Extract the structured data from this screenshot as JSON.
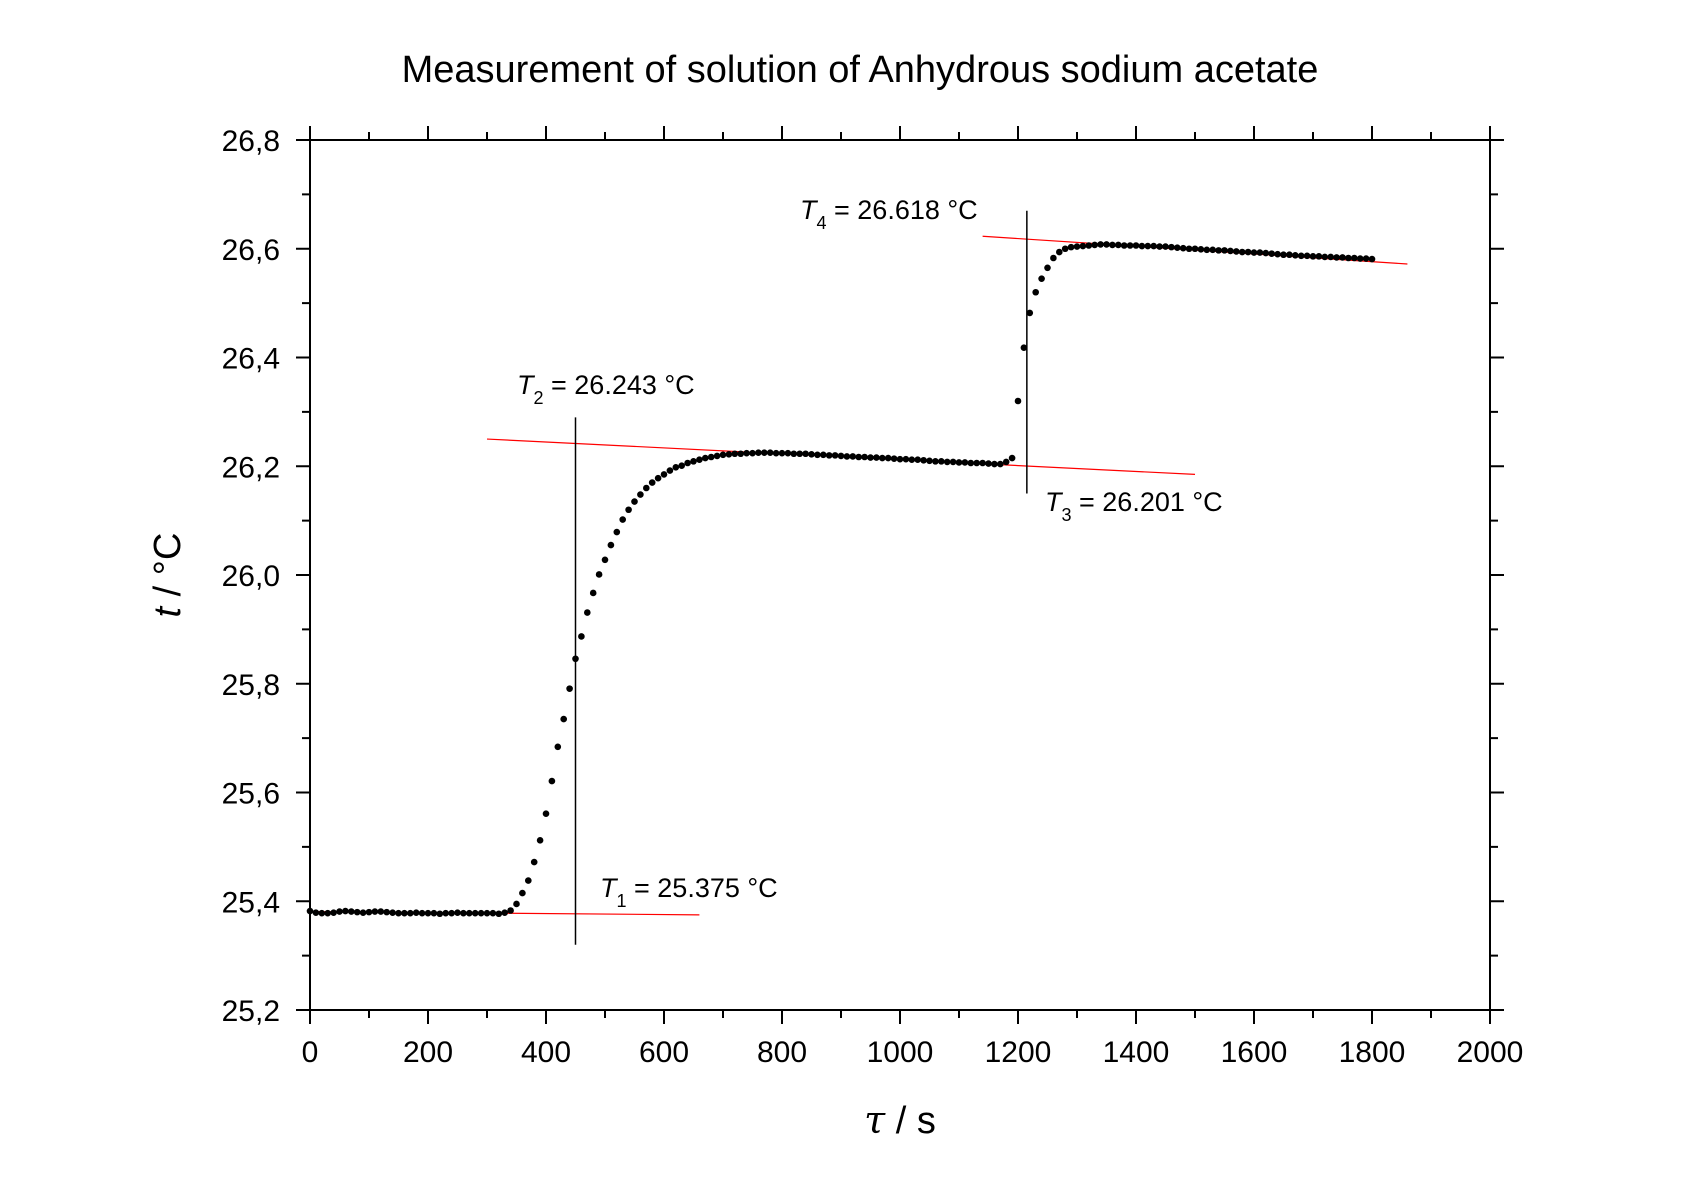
{
  "chart_data": {
    "type": "scatter",
    "title": "Measurement of solution of Anhydrous sodium acetate",
    "xlabel_symbol": "τ",
    "xlabel_unit": " / s",
    "ylabel_symbol": "t",
    "ylabel_unit": " / °C",
    "xlim": [
      0,
      2000
    ],
    "ylim": [
      25.2,
      26.8
    ],
    "x_ticks": [
      0,
      200,
      400,
      600,
      800,
      1000,
      1200,
      1400,
      1600,
      1800,
      2000
    ],
    "x_tick_labels": [
      "0",
      "200",
      "400",
      "600",
      "800",
      "1000",
      "1200",
      "1400",
      "1600",
      "1800",
      "2000"
    ],
    "y_ticks": [
      25.2,
      25.4,
      25.6,
      25.8,
      26.0,
      26.2,
      26.4,
      26.6,
      26.8
    ],
    "y_tick_labels": [
      "25,2",
      "25,4",
      "25,6",
      "25,8",
      "26,0",
      "26,2",
      "26,4",
      "26,6",
      "26,8"
    ],
    "grid": false,
    "marker_color": "#000000",
    "fit_line_color": "#ff0000",
    "series": [
      {
        "x": [
          0,
          10,
          20,
          30,
          40,
          50,
          60,
          70,
          80,
          90,
          100,
          110,
          120,
          130,
          140,
          150,
          160,
          170,
          180,
          190,
          200,
          210,
          220,
          230,
          240,
          250,
          260,
          270,
          280,
          290,
          300,
          310,
          320,
          330,
          340,
          350,
          360,
          370,
          380,
          390,
          400,
          410,
          420,
          430,
          440,
          450,
          460,
          470,
          480,
          490,
          500,
          510,
          520,
          530,
          540,
          550,
          560,
          570,
          580,
          590,
          600,
          610,
          620,
          630,
          640,
          650,
          660,
          670,
          680,
          690,
          700,
          710,
          720,
          730,
          740,
          750,
          760,
          770,
          780,
          790,
          800,
          810,
          820,
          830,
          840,
          850,
          860,
          870,
          880,
          890,
          900,
          910,
          920,
          930,
          940,
          950,
          960,
          970,
          980,
          990,
          1000,
          1010,
          1020,
          1030,
          1040,
          1050,
          1060,
          1070,
          1080,
          1090,
          1100,
          1110,
          1120,
          1130,
          1140,
          1150,
          1160,
          1170,
          1180,
          1190,
          1200,
          1210,
          1220,
          1230,
          1240,
          1250,
          1260,
          1270,
          1280,
          1290,
          1300,
          1310,
          1320,
          1330,
          1340,
          1350,
          1360,
          1370,
          1380,
          1390,
          1400,
          1410,
          1420,
          1430,
          1440,
          1450,
          1460,
          1470,
          1480,
          1490,
          1500,
          1510,
          1520,
          1530,
          1540,
          1550,
          1560,
          1570,
          1580,
          1590,
          1600,
          1610,
          1620,
          1630,
          1640,
          1650,
          1660,
          1670,
          1680,
          1690,
          1700,
          1710,
          1720,
          1730,
          1740,
          1750,
          1760,
          1770,
          1780,
          1790,
          1800
        ],
        "y": [
          25.382,
          25.379,
          25.378,
          25.378,
          25.379,
          25.381,
          25.382,
          25.381,
          25.38,
          25.379,
          25.38,
          25.381,
          25.381,
          25.38,
          25.379,
          25.378,
          25.378,
          25.378,
          25.379,
          25.378,
          25.378,
          25.378,
          25.377,
          25.378,
          25.378,
          25.379,
          25.378,
          25.378,
          25.378,
          25.378,
          25.378,
          25.378,
          25.377,
          25.379,
          25.383,
          25.395,
          25.415,
          25.438,
          25.472,
          25.512,
          25.561,
          25.621,
          25.684,
          25.735,
          25.791,
          25.846,
          25.887,
          25.931,
          25.967,
          26.001,
          26.028,
          26.055,
          26.079,
          26.102,
          26.12,
          26.135,
          26.148,
          26.16,
          26.17,
          26.178,
          26.185,
          26.192,
          26.198,
          26.201,
          26.206,
          26.209,
          26.212,
          26.215,
          26.217,
          26.219,
          26.221,
          26.222,
          26.223,
          26.223,
          26.224,
          26.224,
          26.225,
          26.225,
          26.225,
          26.224,
          26.224,
          26.224,
          26.223,
          26.223,
          26.223,
          26.222,
          26.221,
          26.221,
          26.22,
          26.22,
          26.219,
          26.218,
          26.218,
          26.217,
          26.217,
          26.216,
          26.216,
          26.215,
          26.215,
          26.214,
          26.213,
          26.213,
          26.212,
          26.212,
          26.211,
          26.21,
          26.209,
          26.209,
          26.208,
          26.208,
          26.207,
          26.207,
          26.206,
          26.206,
          26.206,
          26.205,
          26.204,
          26.204,
          26.208,
          26.215,
          26.32,
          26.418,
          26.482,
          26.52,
          26.545,
          26.565,
          26.583,
          26.594,
          26.6,
          26.603,
          26.604,
          26.605,
          26.606,
          26.607,
          26.608,
          26.608,
          26.607,
          26.607,
          26.606,
          26.606,
          26.606,
          26.605,
          26.605,
          26.605,
          26.604,
          26.604,
          26.603,
          26.602,
          26.601,
          26.6,
          26.6,
          26.599,
          26.598,
          26.598,
          26.597,
          26.597,
          26.596,
          26.595,
          26.594,
          26.594,
          26.593,
          26.593,
          26.592,
          26.591,
          26.59,
          26.589,
          26.589,
          26.588,
          26.587,
          26.587,
          26.586,
          26.586,
          26.585,
          26.585,
          26.584,
          26.584,
          26.583,
          26.583,
          26.582,
          26.582,
          26.581
        ]
      }
    ],
    "fit_lines": [
      {
        "x": [
          0,
          660
        ],
        "y": [
          25.381,
          25.375
        ]
      },
      {
        "x": [
          300,
          1500
        ],
        "y": [
          26.25,
          26.185
        ]
      },
      {
        "x": [
          1140,
          1860
        ],
        "y": [
          26.623,
          26.572
        ]
      }
    ],
    "vertical_lines": [
      {
        "x": 450,
        "y": [
          25.32,
          26.29
        ]
      },
      {
        "x": 1215,
        "y": [
          26.15,
          26.67
        ]
      }
    ],
    "annotations": [
      {
        "symbol": "T",
        "sub": "1",
        "text": " = 25.375 °C"
      },
      {
        "symbol": "T",
        "sub": "2",
        "text": " = 26.243 °C"
      },
      {
        "symbol": "T",
        "sub": "3",
        "text": " = 26.201 °C"
      },
      {
        "symbol": "T",
        "sub": "4",
        "text": " = 26.618 °C"
      }
    ]
  }
}
